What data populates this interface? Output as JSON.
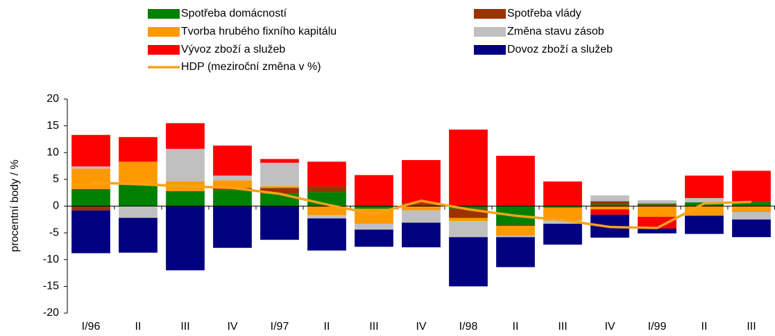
{
  "chart_data": {
    "type": "bar",
    "stacked": true,
    "y_label": "procentní body / %",
    "categories": [
      "I/96",
      "II",
      "III",
      "IV",
      "I/97",
      "II",
      "III",
      "IV",
      "I/98",
      "II",
      "III",
      "IV",
      "I/99",
      "II",
      "III"
    ],
    "ylim": [
      -20,
      20
    ],
    "yticks": [
      20,
      15,
      10,
      5,
      0,
      -5,
      -10,
      -15,
      -20
    ],
    "series": [
      {
        "name": "Spotřeba domácností",
        "color": "#008000",
        "values": [
          3.2,
          4.0,
          2.8,
          3.0,
          2.3,
          2.6,
          -0.5,
          0.2,
          -0.5,
          -3.5,
          -0.3,
          0.3,
          0.3,
          0.7,
          0.8
        ]
      },
      {
        "name": "Spotřeba vlády",
        "color": "#993300",
        "values": [
          -0.8,
          0.2,
          0,
          0.4,
          1.1,
          1.1,
          0,
          0.3,
          -1.7,
          -0.2,
          0,
          0.6,
          0.2,
          0,
          0
        ]
      },
      {
        "name": "Tvorba hrubého fixního kapitálu",
        "color": "#ff9900",
        "values": [
          3.8,
          4.1,
          1.8,
          1.4,
          0.3,
          -1.7,
          -2.8,
          -0.8,
          -0.6,
          -1.8,
          -2.4,
          -0.6,
          -2.0,
          -1.8,
          -1.1
        ]
      },
      {
        "name": "Změna stavu zásob",
        "color": "#c0c0c0",
        "values": [
          0.4,
          -2.2,
          6.1,
          0.9,
          4.4,
          -0.6,
          -1.1,
          -2.3,
          -3.0,
          -0.3,
          -0.6,
          1.1,
          0.6,
          0.8,
          -1.4
        ]
      },
      {
        "name": "Vývoz zboží a služeb",
        "color": "#ff0000",
        "values": [
          5.9,
          4.6,
          4.8,
          5.6,
          0.7,
          4.6,
          5.8,
          8.1,
          14.3,
          9.4,
          4.6,
          -1.0,
          -2.2,
          4.2,
          5.8
        ]
      },
      {
        "name": "Dovoz zboží a služeb",
        "color": "#000080",
        "values": [
          -8.0,
          -6.5,
          -12.0,
          -7.8,
          -6.3,
          -6.0,
          -3.2,
          -4.6,
          -9.2,
          -5.6,
          -3.9,
          -4.3,
          -0.9,
          -3.4,
          -3.3
        ]
      },
      {
        "name": "HDP (meziroční změna v %)",
        "type": "line",
        "color": "#f7a21b",
        "values": [
          4.4,
          4.1,
          3.7,
          3.4,
          2.3,
          0.3,
          -1.5,
          1.0,
          -0.6,
          -1.8,
          -2.6,
          -3.9,
          -4.1,
          0.5,
          0.8
        ]
      }
    ]
  }
}
